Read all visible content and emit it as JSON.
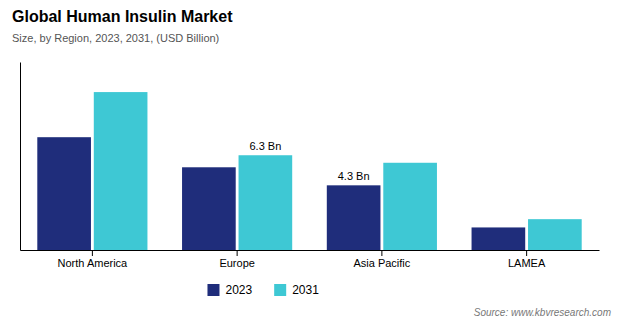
{
  "chart_data": {
    "type": "bar",
    "title": "Global Human Insulin Market",
    "subtitle": "Size, by Region, 2023, 2031, (USD Billion)",
    "source": "Source: www.kbvresearch.com",
    "categories": [
      "North America",
      "Europe",
      "Asia Pacific",
      "LAMEA"
    ],
    "series": [
      {
        "name": "2023",
        "color": "#1f2d7b",
        "values": [
          7.5,
          5.5,
          4.3,
          1.5
        ],
        "value_labels": [
          null,
          null,
          "4.3 Bn",
          null
        ]
      },
      {
        "name": "2031",
        "color": "#3ec8d4",
        "values": [
          10.5,
          6.3,
          5.8,
          2.05
        ],
        "value_labels": [
          null,
          "6.3 Bn",
          null,
          null
        ]
      }
    ],
    "ylim": [
      0,
      12.5
    ],
    "tick_labels": "x",
    "grid": false,
    "legend": "bottom"
  }
}
